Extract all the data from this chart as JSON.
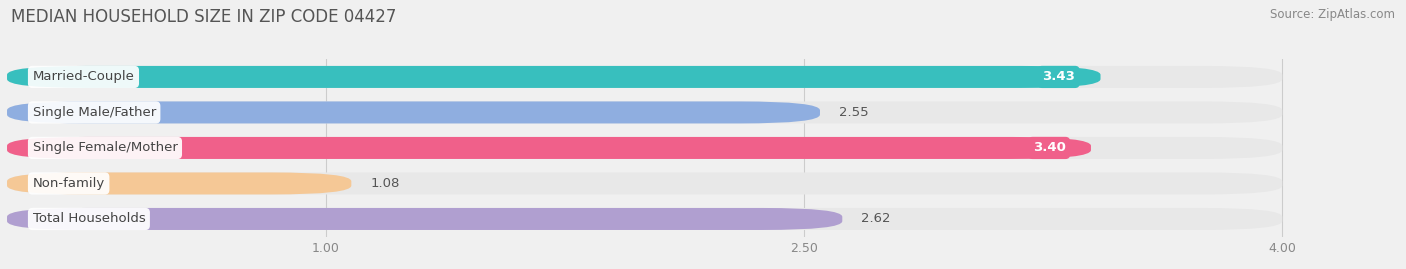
{
  "title": "MEDIAN HOUSEHOLD SIZE IN ZIP CODE 04427",
  "source": "Source: ZipAtlas.com",
  "categories": [
    "Married-Couple",
    "Single Male/Father",
    "Single Female/Mother",
    "Non-family",
    "Total Households"
  ],
  "values": [
    3.43,
    2.55,
    3.4,
    1.08,
    2.62
  ],
  "bar_colors": [
    "#38bfbe",
    "#8faee0",
    "#f0608a",
    "#f5c896",
    "#b09fd0"
  ],
  "value_inside": [
    true,
    false,
    true,
    false,
    false
  ],
  "xlim": [
    0,
    4.3
  ],
  "xmin": 0,
  "xticks": [
    1.0,
    2.5,
    4.0
  ],
  "xtick_labels": [
    "1.00",
    "2.50",
    "4.00"
  ],
  "background_color": "#f0f0f0",
  "bar_bg_color": "#e8e8e8",
  "title_fontsize": 12,
  "label_fontsize": 9.5,
  "value_fontsize": 9.5,
  "source_fontsize": 8.5
}
